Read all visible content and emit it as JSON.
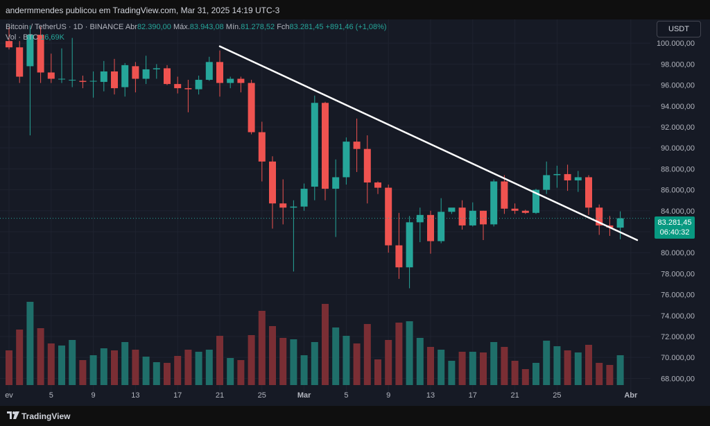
{
  "header": {
    "caption": "andermmendes publicou em TradingView.com, Mar 31, 2025 14:19 UTC-3"
  },
  "legend": {
    "symbol": "Bitcoin / TetherUS · 1D · BINANCE",
    "open_label": "Abr",
    "open": "82.390,00",
    "high_label": "Máx.",
    "high": "83.943,08",
    "low_label": "Mín.",
    "low": "81.278,52",
    "close_label": "Fch",
    "close": "83.281,45",
    "change": "+891,46 (+1,08%)",
    "volume_label": "Vol · BTC",
    "volume": "16,69K"
  },
  "currency_button": "USDT",
  "price_badge": {
    "price": "83.281,45",
    "countdown": "06:40:32"
  },
  "footer": {
    "brand": "TradingView"
  },
  "colors": {
    "up": "#26a69a",
    "down": "#ef5350",
    "vol_up": "#1f6f6a",
    "vol_down": "#7a2e34",
    "trendline": "#ffffff"
  },
  "chart_data": {
    "type": "candlestick",
    "title": "Bitcoin / TetherUS · 1D · BINANCE",
    "ylim": [
      66500,
      102000
    ],
    "y_ticks": [
      68000,
      70000,
      72000,
      74000,
      76000,
      78000,
      80000,
      82000,
      84000,
      86000,
      88000,
      90000,
      92000,
      94000,
      96000,
      98000,
      100000
    ],
    "y_tick_labels": [
      "68.000,00",
      "70.000,00",
      "72.000,00",
      "74.000,00",
      "76.000,00",
      "78.000,00",
      "80.000,00",
      "82.000,00",
      "84.000,00",
      "86.000,00",
      "88.000,00",
      "90.000,00",
      "92.000,00",
      "94.000,00",
      "96.000,00",
      "98.000,00",
      "100.000,00"
    ],
    "x_ticks": [
      {
        "index": 0,
        "label": "ev"
      },
      {
        "index": 4,
        "label": "5"
      },
      {
        "index": 8,
        "label": "9"
      },
      {
        "index": 12,
        "label": "13"
      },
      {
        "index": 16,
        "label": "17"
      },
      {
        "index": 20,
        "label": "21"
      },
      {
        "index": 24,
        "label": "25"
      },
      {
        "index": 28,
        "label": "Mar"
      },
      {
        "index": 32,
        "label": "5"
      },
      {
        "index": 36,
        "label": "9"
      },
      {
        "index": 40,
        "label": "13"
      },
      {
        "index": 44,
        "label": "17"
      },
      {
        "index": 48,
        "label": "21"
      },
      {
        "index": 52,
        "label": "25"
      },
      {
        "index": 59,
        "label": "Abr"
      }
    ],
    "candles": [
      {
        "date": "Feb 1",
        "o": 100200,
        "h": 101500,
        "l": 99400,
        "c": 99600,
        "v": 50
      },
      {
        "date": "Feb 2",
        "o": 99600,
        "h": 100200,
        "l": 96200,
        "c": 96800,
        "v": 80
      },
      {
        "date": "Feb 3",
        "o": 97800,
        "h": 101700,
        "l": 91200,
        "c": 100800,
        "v": 120
      },
      {
        "date": "Feb 4",
        "o": 100800,
        "h": 101600,
        "l": 96200,
        "c": 97200,
        "v": 82
      },
      {
        "date": "Feb 5",
        "o": 97200,
        "h": 99000,
        "l": 96200,
        "c": 96600,
        "v": 60
      },
      {
        "date": "Feb 6",
        "o": 96600,
        "h": 99500,
        "l": 96200,
        "c": 96600,
        "v": 57
      },
      {
        "date": "Feb 7",
        "o": 96500,
        "h": 100500,
        "l": 95800,
        "c": 96500,
        "v": 65
      },
      {
        "date": "Feb 8",
        "o": 96400,
        "h": 96900,
        "l": 95700,
        "c": 96300,
        "v": 36
      },
      {
        "date": "Feb 9",
        "o": 96400,
        "h": 97300,
        "l": 94800,
        "c": 96400,
        "v": 43
      },
      {
        "date": "Feb 10",
        "o": 96300,
        "h": 98300,
        "l": 95400,
        "c": 97300,
        "v": 53
      },
      {
        "date": "Feb 11",
        "o": 97300,
        "h": 98500,
        "l": 95100,
        "c": 95700,
        "v": 50
      },
      {
        "date": "Feb 12",
        "o": 95800,
        "h": 98100,
        "l": 94900,
        "c": 97900,
        "v": 62
      },
      {
        "date": "Feb 13",
        "o": 97800,
        "h": 98200,
        "l": 95300,
        "c": 96600,
        "v": 51
      },
      {
        "date": "Feb 14",
        "o": 96600,
        "h": 98800,
        "l": 96100,
        "c": 97500,
        "v": 41
      },
      {
        "date": "Feb 15",
        "o": 97500,
        "h": 98000,
        "l": 96600,
        "c": 97600,
        "v": 33
      },
      {
        "date": "Feb 16",
        "o": 97600,
        "h": 97900,
        "l": 96000,
        "c": 96100,
        "v": 32
      },
      {
        "date": "Feb 17",
        "o": 96100,
        "h": 96800,
        "l": 95200,
        "c": 95700,
        "v": 42
      },
      {
        "date": "Feb 18",
        "o": 95700,
        "h": 96500,
        "l": 93400,
        "c": 95600,
        "v": 51
      },
      {
        "date": "Feb 19",
        "o": 95600,
        "h": 96900,
        "l": 95100,
        "c": 96500,
        "v": 48
      },
      {
        "date": "Feb 20",
        "o": 96500,
        "h": 98700,
        "l": 96400,
        "c": 98200,
        "v": 51
      },
      {
        "date": "Feb 21",
        "o": 98200,
        "h": 99300,
        "l": 94900,
        "c": 96200,
        "v": 71
      },
      {
        "date": "Feb 22",
        "o": 96200,
        "h": 96800,
        "l": 95700,
        "c": 96600,
        "v": 39
      },
      {
        "date": "Feb 23",
        "o": 96600,
        "h": 96800,
        "l": 95300,
        "c": 96200,
        "v": 36
      },
      {
        "date": "Feb 24",
        "o": 96200,
        "h": 96500,
        "l": 91300,
        "c": 91500,
        "v": 72
      },
      {
        "date": "Feb 25",
        "o": 91500,
        "h": 92500,
        "l": 86800,
        "c": 88700,
        "v": 107
      },
      {
        "date": "Feb 26",
        "o": 88700,
        "h": 89200,
        "l": 82300,
        "c": 84700,
        "v": 85
      },
      {
        "date": "Feb 27",
        "o": 84700,
        "h": 87000,
        "l": 82700,
        "c": 84300,
        "v": 68
      },
      {
        "date": "Feb 28",
        "o": 84300,
        "h": 85000,
        "l": 78200,
        "c": 84400,
        "v": 66
      },
      {
        "date": "Mar 1",
        "o": 84400,
        "h": 86600,
        "l": 84000,
        "c": 86100,
        "v": 43
      },
      {
        "date": "Mar 2",
        "o": 86300,
        "h": 95000,
        "l": 85000,
        "c": 94300,
        "v": 62
      },
      {
        "date": "Mar 3",
        "o": 94300,
        "h": 94400,
        "l": 85000,
        "c": 86100,
        "v": 117
      },
      {
        "date": "Mar 4",
        "o": 86100,
        "h": 88900,
        "l": 81500,
        "c": 87200,
        "v": 83
      },
      {
        "date": "Mar 5",
        "o": 87200,
        "h": 91000,
        "l": 86500,
        "c": 90600,
        "v": 71
      },
      {
        "date": "Mar 6",
        "o": 90600,
        "h": 92800,
        "l": 87700,
        "c": 89900,
        "v": 60
      },
      {
        "date": "Mar 7",
        "o": 89900,
        "h": 91200,
        "l": 84700,
        "c": 86700,
        "v": 88
      },
      {
        "date": "Mar 8",
        "o": 86700,
        "h": 86800,
        "l": 85600,
        "c": 86200,
        "v": 37
      },
      {
        "date": "Mar 9",
        "o": 86200,
        "h": 86500,
        "l": 80000,
        "c": 80700,
        "v": 65
      },
      {
        "date": "Mar 10",
        "o": 80700,
        "h": 83800,
        "l": 77500,
        "c": 78600,
        "v": 90
      },
      {
        "date": "Mar 11",
        "o": 78600,
        "h": 83500,
        "l": 76600,
        "c": 82900,
        "v": 92
      },
      {
        "date": "Mar 12",
        "o": 82900,
        "h": 84300,
        "l": 81000,
        "c": 83600,
        "v": 68
      },
      {
        "date": "Mar 13",
        "o": 83600,
        "h": 84000,
        "l": 79900,
        "c": 81100,
        "v": 55
      },
      {
        "date": "Mar 14",
        "o": 81100,
        "h": 85200,
        "l": 80900,
        "c": 83900,
        "v": 51
      },
      {
        "date": "Mar 15",
        "o": 83900,
        "h": 84200,
        "l": 83700,
        "c": 84300,
        "v": 35
      },
      {
        "date": "Mar 16",
        "o": 84300,
        "h": 85000,
        "l": 82200,
        "c": 82600,
        "v": 48
      },
      {
        "date": "Mar 17",
        "o": 82600,
        "h": 84800,
        "l": 82500,
        "c": 84000,
        "v": 48
      },
      {
        "date": "Mar 18",
        "o": 84000,
        "h": 84000,
        "l": 81200,
        "c": 82700,
        "v": 47
      },
      {
        "date": "Mar 19",
        "o": 82700,
        "h": 87000,
        "l": 82500,
        "c": 86800,
        "v": 62
      },
      {
        "date": "Mar 20",
        "o": 86800,
        "h": 87400,
        "l": 83700,
        "c": 84200,
        "v": 55
      },
      {
        "date": "Mar 21",
        "o": 84200,
        "h": 84700,
        "l": 83700,
        "c": 84000,
        "v": 35
      },
      {
        "date": "Mar 22",
        "o": 84000,
        "h": 84100,
        "l": 83700,
        "c": 83800,
        "v": 23
      },
      {
        "date": "Mar 23",
        "o": 83800,
        "h": 86100,
        "l": 83700,
        "c": 86000,
        "v": 32
      },
      {
        "date": "Mar 24",
        "o": 86000,
        "h": 88700,
        "l": 85600,
        "c": 87400,
        "v": 64
      },
      {
        "date": "Mar 25",
        "o": 87400,
        "h": 88300,
        "l": 86200,
        "c": 87500,
        "v": 56
      },
      {
        "date": "Mar 26",
        "o": 87500,
        "h": 88400,
        "l": 85900,
        "c": 86900,
        "v": 50
      },
      {
        "date": "Mar 27",
        "o": 86900,
        "h": 87800,
        "l": 85800,
        "c": 87200,
        "v": 47
      },
      {
        "date": "Mar 28",
        "o": 87200,
        "h": 87400,
        "l": 83600,
        "c": 84300,
        "v": 58
      },
      {
        "date": "Mar 29",
        "o": 84300,
        "h": 84600,
        "l": 81700,
        "c": 82600,
        "v": 32
      },
      {
        "date": "Mar 30",
        "o": 82600,
        "h": 83500,
        "l": 81600,
        "c": 82400,
        "v": 29
      },
      {
        "date": "Mar 31",
        "o": 82390,
        "h": 83943,
        "l": 81279,
        "c": 83281,
        "v": 43
      }
    ],
    "volume_scale_max": 120,
    "trendline": {
      "from": {
        "index": 20,
        "price": 99700
      },
      "to": {
        "index": 59.6,
        "price": 81200
      }
    },
    "last_price_line": 83281.45
  }
}
